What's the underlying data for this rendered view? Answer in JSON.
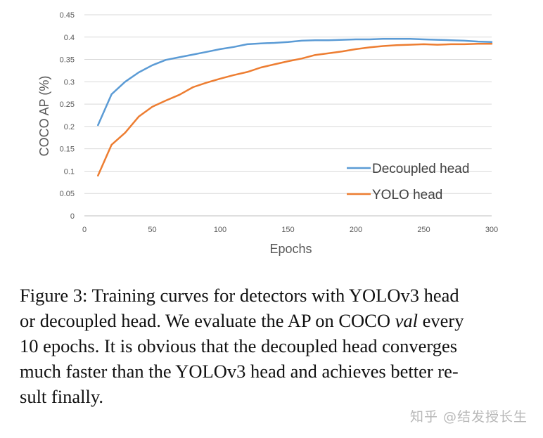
{
  "chart_data": {
    "type": "line",
    "xlabel": "Epochs",
    "ylabel": "COCO AP (%)",
    "xlim": [
      0,
      300
    ],
    "ylim": [
      0,
      0.45
    ],
    "xticks": [
      "0",
      "50",
      "100",
      "150",
      "200",
      "250",
      "300"
    ],
    "yticks": [
      "0",
      "0.05",
      "0.1",
      "0.15",
      "0.2",
      "0.25",
      "0.3",
      "0.35",
      "0.4",
      "0.45"
    ],
    "grid": "horizontal",
    "legend_position": "bottom-right",
    "x": [
      10,
      20,
      30,
      40,
      50,
      60,
      70,
      80,
      90,
      100,
      110,
      120,
      130,
      140,
      150,
      160,
      170,
      180,
      190,
      200,
      210,
      220,
      230,
      240,
      250,
      260,
      270,
      280,
      290,
      300
    ],
    "series": [
      {
        "name": "Decoupled head",
        "color": "#5B9BD5",
        "values": [
          0.203,
          0.272,
          0.3,
          0.321,
          0.337,
          0.349,
          0.355,
          0.361,
          0.367,
          0.373,
          0.378,
          0.384,
          0.386,
          0.387,
          0.389,
          0.392,
          0.393,
          0.393,
          0.394,
          0.395,
          0.395,
          0.396,
          0.396,
          0.396,
          0.395,
          0.394,
          0.393,
          0.392,
          0.39,
          0.389
        ]
      },
      {
        "name": "YOLO head",
        "color": "#ED7D31",
        "values": [
          0.09,
          0.159,
          0.186,
          0.222,
          0.244,
          0.258,
          0.271,
          0.288,
          0.298,
          0.307,
          0.315,
          0.322,
          0.332,
          0.339,
          0.346,
          0.352,
          0.36,
          0.364,
          0.368,
          0.373,
          0.377,
          0.38,
          0.382,
          0.383,
          0.384,
          0.383,
          0.384,
          0.384,
          0.385,
          0.385
        ]
      }
    ]
  },
  "caption": {
    "line1": "Figure 3: Training curves for detectors with YOLOv3 head",
    "line2": "or decoupled head. We evaluate the AP on COCO ",
    "line2_italic": "val",
    "line2_end": " every",
    "line3": "10 epochs. It is obvious that the decoupled head converges",
    "line4": "much faster than the YOLOv3 head and achieves better re-",
    "line5": "sult finally."
  },
  "watermark": "知乎 @结发授长生"
}
